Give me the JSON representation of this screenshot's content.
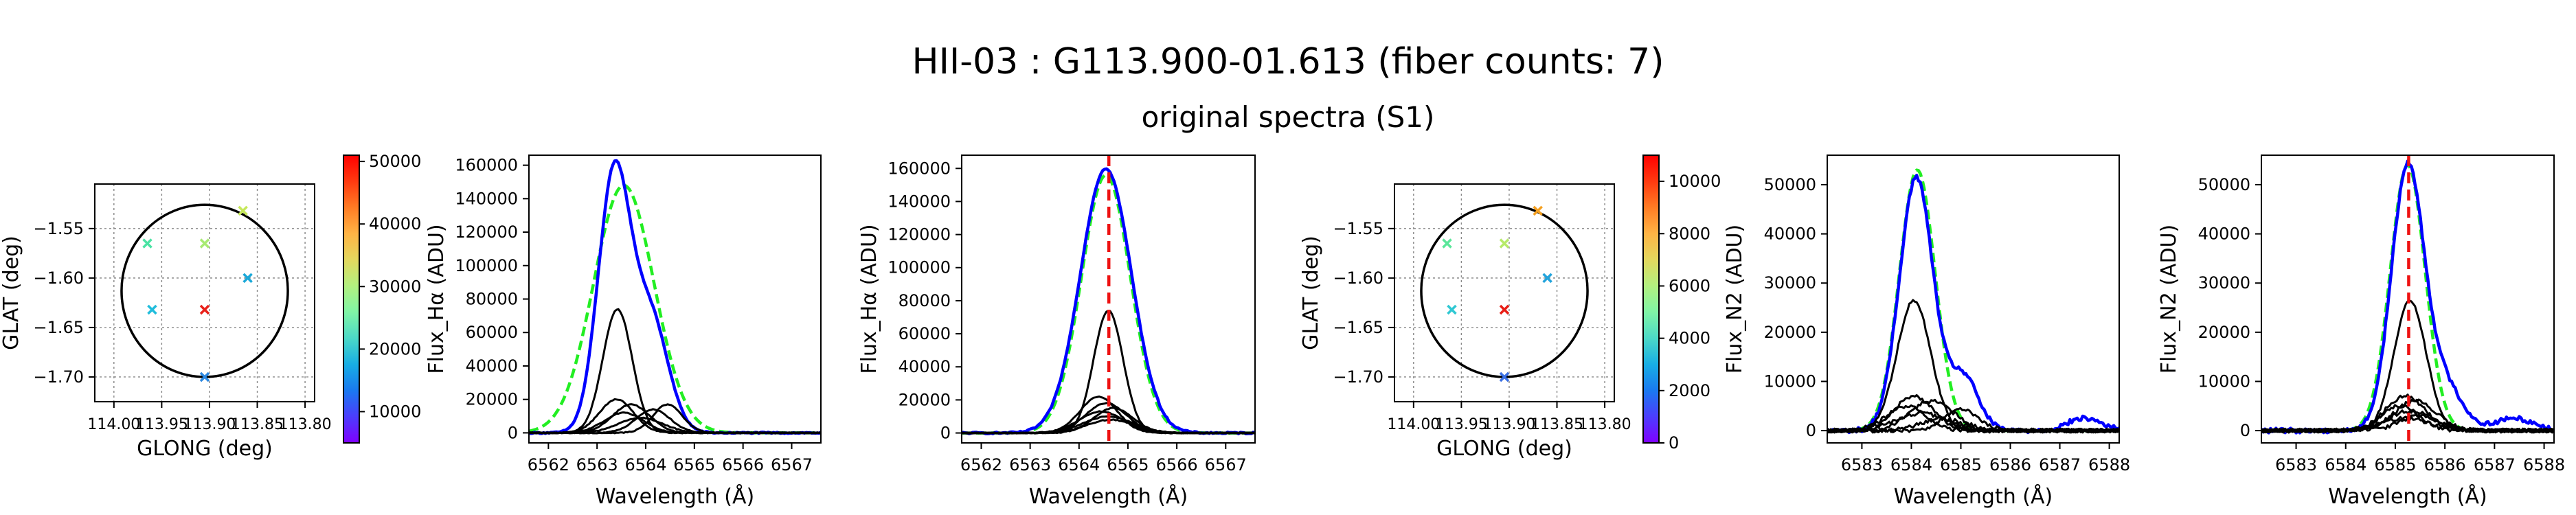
{
  "figure": {
    "title": "HII-03 : G113.900-01.613 (fiber counts: 7)",
    "subtitle": "original spectra (S1)"
  },
  "chart_data": [
    {
      "type": "scatter",
      "name": "fiber-map-halpha",
      "xlabel": "GLONG (deg)",
      "ylabel": "GLAT (deg)",
      "xlim": [
        114.02,
        113.79
      ],
      "ylim": [
        -1.725,
        -1.505
      ],
      "xticks": [
        114.0,
        113.95,
        113.9,
        113.85,
        113.8
      ],
      "xtick_labels": [
        "114.00",
        "113.95",
        "113.90",
        "113.85",
        "113.80"
      ],
      "yticks": [
        -1.55,
        -1.6,
        -1.65,
        -1.7
      ],
      "ytick_labels": [
        "−1.55",
        "−1.60",
        "−1.65",
        "−1.70"
      ],
      "grid": true,
      "grid_style": "dotted",
      "circle": {
        "center": [
          113.905,
          -1.613
        ],
        "radius_deg": 0.087
      },
      "points": [
        {
          "x": 113.865,
          "y": -1.532,
          "color": "#c6e85a"
        },
        {
          "x": 113.965,
          "y": -1.565,
          "color": "#4be3a4"
        },
        {
          "x": 113.905,
          "y": -1.565,
          "color": "#a8ea73"
        },
        {
          "x": 113.86,
          "y": -1.6,
          "color": "#1aa9d9"
        },
        {
          "x": 113.96,
          "y": -1.632,
          "color": "#21bddc"
        },
        {
          "x": 113.905,
          "y": -1.632,
          "color": "#e8211a"
        },
        {
          "x": 113.905,
          "y": -1.7,
          "color": "#2b87e0"
        }
      ],
      "colorbar": {
        "min": 5000,
        "max": 51000,
        "ticks": [
          10000,
          20000,
          30000,
          40000,
          50000
        ],
        "tick_labels": [
          "10000",
          "20000",
          "30000",
          "40000",
          "50000"
        ],
        "colormap": "rainbow"
      }
    },
    {
      "type": "line",
      "name": "halpha-original",
      "xlabel": "Wavelength (Å)",
      "ylabel": "Flux_Hα (ADU)",
      "xlim": [
        6561.6,
        6567.6
      ],
      "ylim": [
        -6000,
        166000
      ],
      "xticks": [
        6562,
        6563,
        6564,
        6565,
        6566,
        6567
      ],
      "xtick_labels": [
        "6562",
        "6563",
        "6564",
        "6565",
        "6566",
        "6567"
      ],
      "yticks": [
        0,
        20000,
        40000,
        60000,
        80000,
        100000,
        120000,
        140000,
        160000
      ],
      "ytick_labels": [
        "0",
        "20000",
        "40000",
        "60000",
        "80000",
        "100000",
        "120000",
        "140000",
        "160000"
      ],
      "grid": false,
      "vline": null,
      "series": [
        {
          "role": "fit",
          "color": "#22ee22",
          "dashed": true,
          "width": 4.5,
          "components": [
            {
              "a": 148000,
              "mu": 6563.55,
              "s": 0.62
            }
          ],
          "noise": 0,
          "baseline": 0
        },
        {
          "role": "sum",
          "color": "#0000ff",
          "dashed": false,
          "width": 4.5,
          "components": [
            {
              "a": 154000,
              "mu": 6563.35,
              "s": 0.33
            },
            {
              "a": 68000,
              "mu": 6564.1,
              "s": 0.36
            }
          ],
          "noise": 400,
          "baseline": 0
        },
        {
          "role": "fiber",
          "color": "#000000",
          "dashed": false,
          "width": 3,
          "components": [
            {
              "a": 74000,
              "mu": 6563.42,
              "s": 0.3
            }
          ],
          "noise": 300,
          "baseline": 0
        },
        {
          "role": "fiber",
          "color": "#000000",
          "dashed": false,
          "width": 3,
          "components": [
            {
              "a": 20000,
              "mu": 6563.4,
              "s": 0.35
            }
          ],
          "noise": 250,
          "baseline": 0
        },
        {
          "role": "fiber",
          "color": "#000000",
          "dashed": false,
          "width": 3,
          "components": [
            {
              "a": 17000,
              "mu": 6563.7,
              "s": 0.38
            }
          ],
          "noise": 250,
          "baseline": 0
        },
        {
          "role": "fiber",
          "color": "#000000",
          "dashed": false,
          "width": 3,
          "components": [
            {
              "a": 14000,
              "mu": 6564.15,
              "s": 0.35
            }
          ],
          "noise": 250,
          "baseline": 0
        },
        {
          "role": "fiber",
          "color": "#000000",
          "dashed": false,
          "width": 3,
          "components": [
            {
              "a": 12000,
              "mu": 6563.55,
              "s": 0.4
            }
          ],
          "noise": 250,
          "baseline": 0
        },
        {
          "role": "fiber",
          "color": "#000000",
          "dashed": false,
          "width": 3,
          "components": [
            {
              "a": 17000,
              "mu": 6564.45,
              "s": 0.3
            }
          ],
          "noise": 250,
          "baseline": 0
        },
        {
          "role": "fiber",
          "color": "#000000",
          "dashed": false,
          "width": 3,
          "components": [
            {
              "a": 9000,
              "mu": 6563.9,
              "s": 0.45
            }
          ],
          "noise": 250,
          "baseline": 0
        }
      ]
    },
    {
      "type": "line",
      "name": "halpha-shifted",
      "xlabel": "Wavelength (Å)",
      "ylabel": "Flux_Hα (ADU)",
      "xlim": [
        6561.6,
        6567.6
      ],
      "ylim": [
        -6000,
        168000
      ],
      "xticks": [
        6562,
        6563,
        6564,
        6565,
        6566,
        6567
      ],
      "xtick_labels": [
        "6562",
        "6563",
        "6564",
        "6565",
        "6566",
        "6567"
      ],
      "yticks": [
        0,
        20000,
        40000,
        60000,
        80000,
        100000,
        120000,
        140000,
        160000
      ],
      "ytick_labels": [
        "0",
        "20000",
        "40000",
        "60000",
        "80000",
        "100000",
        "120000",
        "140000",
        "160000"
      ],
      "grid": false,
      "vline": 6564.61,
      "series": [
        {
          "role": "fit",
          "color": "#22ee22",
          "dashed": true,
          "width": 4.5,
          "components": [
            {
              "a": 156000,
              "mu": 6564.55,
              "s": 0.5
            }
          ],
          "noise": 0,
          "baseline": 0
        },
        {
          "role": "sum",
          "color": "#0000ff",
          "dashed": false,
          "width": 4.5,
          "components": [
            {
              "a": 160000,
              "mu": 6564.55,
              "s": 0.52
            }
          ],
          "noise": 500,
          "baseline": 0
        },
        {
          "role": "fiber",
          "color": "#000000",
          "dashed": false,
          "width": 3,
          "components": [
            {
              "a": 74000,
              "mu": 6564.6,
              "s": 0.3
            }
          ],
          "noise": 300,
          "baseline": 0
        },
        {
          "role": "fiber",
          "color": "#000000",
          "dashed": false,
          "width": 3,
          "components": [
            {
              "a": 22000,
              "mu": 6564.4,
              "s": 0.38
            }
          ],
          "noise": 250,
          "baseline": 0
        },
        {
          "role": "fiber",
          "color": "#000000",
          "dashed": false,
          "width": 3,
          "components": [
            {
              "a": 18000,
              "mu": 6564.55,
              "s": 0.42
            }
          ],
          "noise": 250,
          "baseline": 0
        },
        {
          "role": "fiber",
          "color": "#000000",
          "dashed": false,
          "width": 3,
          "components": [
            {
              "a": 15000,
              "mu": 6564.7,
              "s": 0.4
            }
          ],
          "noise": 250,
          "baseline": 0
        },
        {
          "role": "fiber",
          "color": "#000000",
          "dashed": false,
          "width": 3,
          "components": [
            {
              "a": 13000,
              "mu": 6564.45,
              "s": 0.45
            }
          ],
          "noise": 250,
          "baseline": 0
        },
        {
          "role": "fiber",
          "color": "#000000",
          "dashed": false,
          "width": 3,
          "components": [
            {
              "a": 10000,
              "mu": 6564.6,
              "s": 0.5
            }
          ],
          "noise": 250,
          "baseline": 0
        },
        {
          "role": "fiber",
          "color": "#000000",
          "dashed": false,
          "width": 3,
          "components": [
            {
              "a": 8000,
              "mu": 6564.65,
              "s": 0.48
            }
          ],
          "noise": 250,
          "baseline": 0
        }
      ]
    },
    {
      "type": "scatter",
      "name": "fiber-map-n2",
      "xlabel": "GLONG (deg)",
      "ylabel": "GLAT (deg)",
      "xlim": [
        114.02,
        113.79
      ],
      "ylim": [
        -1.725,
        -1.505
      ],
      "xticks": [
        114.0,
        113.95,
        113.9,
        113.85,
        113.8
      ],
      "xtick_labels": [
        "114.00",
        "113.95",
        "113.90",
        "113.85",
        "113.80"
      ],
      "yticks": [
        -1.55,
        -1.6,
        -1.65,
        -1.7
      ],
      "ytick_labels": [
        "−1.55",
        "−1.60",
        "−1.65",
        "−1.70"
      ],
      "grid": true,
      "grid_style": "dotted",
      "circle": {
        "center": [
          113.905,
          -1.613
        ],
        "radius_deg": 0.087
      },
      "points": [
        {
          "x": 113.87,
          "y": -1.532,
          "color": "#f5a020"
        },
        {
          "x": 113.965,
          "y": -1.565,
          "color": "#5be69a"
        },
        {
          "x": 113.905,
          "y": -1.565,
          "color": "#b6ea69"
        },
        {
          "x": 113.86,
          "y": -1.6,
          "color": "#22a4dc"
        },
        {
          "x": 113.96,
          "y": -1.632,
          "color": "#30c8d3"
        },
        {
          "x": 113.905,
          "y": -1.632,
          "color": "#e81e16"
        },
        {
          "x": 113.905,
          "y": -1.7,
          "color": "#3a6fe3"
        }
      ],
      "colorbar": {
        "min": 0,
        "max": 11000,
        "ticks": [
          0,
          2000,
          4000,
          6000,
          8000,
          10000
        ],
        "tick_labels": [
          "0",
          "2000",
          "4000",
          "6000",
          "8000",
          "10000"
        ],
        "colormap": "rainbow"
      }
    },
    {
      "type": "line",
      "name": "n2-original",
      "xlabel": "Wavelength (Å)",
      "ylabel": "Flux_N2 (ADU)",
      "xlim": [
        6582.3,
        6588.2
      ],
      "ylim": [
        -2500,
        56000
      ],
      "xticks": [
        6583,
        6584,
        6585,
        6586,
        6587,
        6588
      ],
      "xtick_labels": [
        "6583",
        "6584",
        "6585",
        "6586",
        "6587",
        "6588"
      ],
      "yticks": [
        0,
        10000,
        20000,
        30000,
        40000,
        50000
      ],
      "ytick_labels": [
        "0",
        "10000",
        "20000",
        "30000",
        "40000",
        "50000"
      ],
      "grid": false,
      "vline": null,
      "series": [
        {
          "role": "fit",
          "color": "#22ee22",
          "dashed": true,
          "width": 4.5,
          "components": [
            {
              "a": 53000,
              "mu": 6584.12,
              "s": 0.36
            }
          ],
          "noise": 0,
          "baseline": 0
        },
        {
          "role": "sum",
          "color": "#0000ff",
          "dashed": false,
          "width": 4.5,
          "components": [
            {
              "a": 51500,
              "mu": 6584.1,
              "s": 0.34
            },
            {
              "a": 11000,
              "mu": 6585.05,
              "s": 0.3
            },
            {
              "a": 2500,
              "mu": 6587.5,
              "s": 0.35
            }
          ],
          "noise": 500,
          "baseline": 0
        },
        {
          "role": "fiber",
          "color": "#000000",
          "dashed": false,
          "width": 3,
          "components": [
            {
              "a": 26500,
              "mu": 6584.05,
              "s": 0.34
            }
          ],
          "noise": 300,
          "baseline": 0
        },
        {
          "role": "fiber",
          "color": "#000000",
          "dashed": false,
          "width": 3,
          "components": [
            {
              "a": 7000,
              "mu": 6584.05,
              "s": 0.4
            }
          ],
          "noise": 400,
          "baseline": 0
        },
        {
          "role": "fiber",
          "color": "#000000",
          "dashed": false,
          "width": 3,
          "components": [
            {
              "a": 6000,
              "mu": 6584.4,
              "s": 0.45
            }
          ],
          "noise": 400,
          "baseline": 0
        },
        {
          "role": "fiber",
          "color": "#000000",
          "dashed": false,
          "width": 3,
          "components": [
            {
              "a": 5000,
              "mu": 6583.9,
              "s": 0.4
            }
          ],
          "noise": 400,
          "baseline": 0
        },
        {
          "role": "fiber",
          "color": "#000000",
          "dashed": false,
          "width": 3,
          "components": [
            {
              "a": 4200,
              "mu": 6585.0,
              "s": 0.35
            }
          ],
          "noise": 400,
          "baseline": 0
        },
        {
          "role": "fiber",
          "color": "#000000",
          "dashed": false,
          "width": 3,
          "components": [
            {
              "a": 3500,
              "mu": 6584.2,
              "s": 0.5
            }
          ],
          "noise": 400,
          "baseline": 0
        },
        {
          "role": "fiber",
          "color": "#000000",
          "dashed": false,
          "width": 3,
          "components": [
            {
              "a": 2500,
              "mu": 6584.6,
              "s": 0.4
            }
          ],
          "noise": 400,
          "baseline": 0
        }
      ]
    },
    {
      "type": "line",
      "name": "n2-shifted",
      "xlabel": "Wavelength (Å)",
      "ylabel": "Flux_N2 (ADU)",
      "xlim": [
        6582.3,
        6588.2
      ],
      "ylim": [
        -2500,
        56000
      ],
      "xticks": [
        6583,
        6584,
        6585,
        6586,
        6587,
        6588
      ],
      "xtick_labels": [
        "6583",
        "6584",
        "6585",
        "6586",
        "6587",
        "6588"
      ],
      "yticks": [
        0,
        10000,
        20000,
        30000,
        40000,
        50000
      ],
      "ytick_labels": [
        "0",
        "10000",
        "20000",
        "30000",
        "40000",
        "50000"
      ],
      "grid": false,
      "vline": 6585.27,
      "series": [
        {
          "role": "fit",
          "color": "#22ee22",
          "dashed": true,
          "width": 4.5,
          "components": [
            {
              "a": 54000,
              "mu": 6585.25,
              "s": 0.35
            }
          ],
          "noise": 0,
          "baseline": 0
        },
        {
          "role": "sum",
          "color": "#0000ff",
          "dashed": false,
          "width": 4.5,
          "components": [
            {
              "a": 53500,
              "mu": 6585.25,
              "s": 0.33
            },
            {
              "a": 9000,
              "mu": 6586.0,
              "s": 0.35
            },
            {
              "a": 2500,
              "mu": 6587.4,
              "s": 0.4
            }
          ],
          "noise": 500,
          "baseline": 0
        },
        {
          "role": "fiber",
          "color": "#000000",
          "dashed": false,
          "width": 3,
          "components": [
            {
              "a": 26500,
              "mu": 6585.3,
              "s": 0.32
            }
          ],
          "noise": 300,
          "baseline": 0
        },
        {
          "role": "fiber",
          "color": "#000000",
          "dashed": false,
          "width": 3,
          "components": [
            {
              "a": 7000,
              "mu": 6585.2,
              "s": 0.4
            }
          ],
          "noise": 400,
          "baseline": 0
        },
        {
          "role": "fiber",
          "color": "#000000",
          "dashed": false,
          "width": 3,
          "components": [
            {
              "a": 6000,
              "mu": 6585.4,
              "s": 0.42
            }
          ],
          "noise": 400,
          "baseline": 0
        },
        {
          "role": "fiber",
          "color": "#000000",
          "dashed": false,
          "width": 3,
          "components": [
            {
              "a": 5000,
              "mu": 6585.1,
              "s": 0.38
            }
          ],
          "noise": 400,
          "baseline": 0
        },
        {
          "role": "fiber",
          "color": "#000000",
          "dashed": false,
          "width": 3,
          "components": [
            {
              "a": 4000,
              "mu": 6585.3,
              "s": 0.45
            }
          ],
          "noise": 400,
          "baseline": 0
        },
        {
          "role": "fiber",
          "color": "#000000",
          "dashed": false,
          "width": 3,
          "components": [
            {
              "a": 3000,
              "mu": 6585.5,
              "s": 0.4
            }
          ],
          "noise": 400,
          "baseline": 0
        },
        {
          "role": "fiber",
          "color": "#000000",
          "dashed": false,
          "width": 3,
          "components": [
            {
              "a": 2500,
              "mu": 6585.2,
              "s": 0.5
            }
          ],
          "noise": 400,
          "baseline": 0
        }
      ]
    }
  ]
}
